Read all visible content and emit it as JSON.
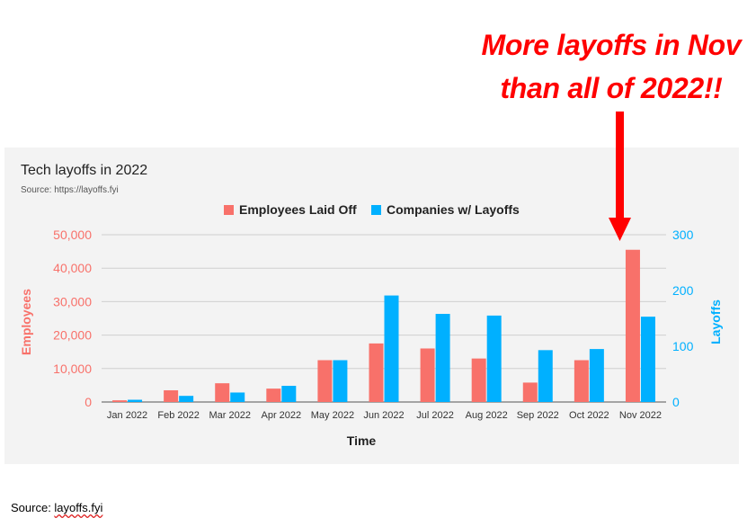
{
  "annotation": {
    "line1": "More layoffs in Nov",
    "line2": "than all of 2022!!",
    "color": "#ff0000"
  },
  "footer": {
    "prefix": "Source: ",
    "link_text": "layoffs.fyi"
  },
  "chart_data": {
    "type": "bar",
    "title": "Tech layoffs in 2022",
    "subtitle": "Source: https://layoffs.fyi",
    "xlabel": "Time",
    "ylabel_left": "Employees",
    "ylabel_right": "Layoffs",
    "categories": [
      "Jan 2022",
      "Feb 2022",
      "Mar 2022",
      "Apr 2022",
      "May 2022",
      "Jun 2022",
      "Jul 2022",
      "Aug 2022",
      "Sep 2022",
      "Oct 2022",
      "Nov 2022"
    ],
    "series": [
      {
        "name": "Employees Laid Off",
        "axis": "left",
        "color": "#f8716a",
        "values": [
          500,
          3500,
          5600,
          4000,
          12500,
          17500,
          16000,
          13000,
          5800,
          12500,
          45500
        ]
      },
      {
        "name": "Companies w/ Layoffs",
        "axis": "right",
        "color": "#00b0ff",
        "values": [
          4,
          11,
          17,
          29,
          75,
          191,
          158,
          155,
          93,
          95,
          153
        ]
      }
    ],
    "ylim_left": [
      0,
      50000
    ],
    "yticks_left": [
      "0",
      "10,000",
      "20,000",
      "30,000",
      "40,000",
      "50,000"
    ],
    "ylim_right": [
      0,
      300
    ],
    "yticks_right": [
      "0",
      "100",
      "200",
      "300"
    ],
    "grid": true,
    "legend_position": "top-center",
    "left_axis_color": "#f8716a",
    "right_axis_color": "#00b0ff"
  }
}
